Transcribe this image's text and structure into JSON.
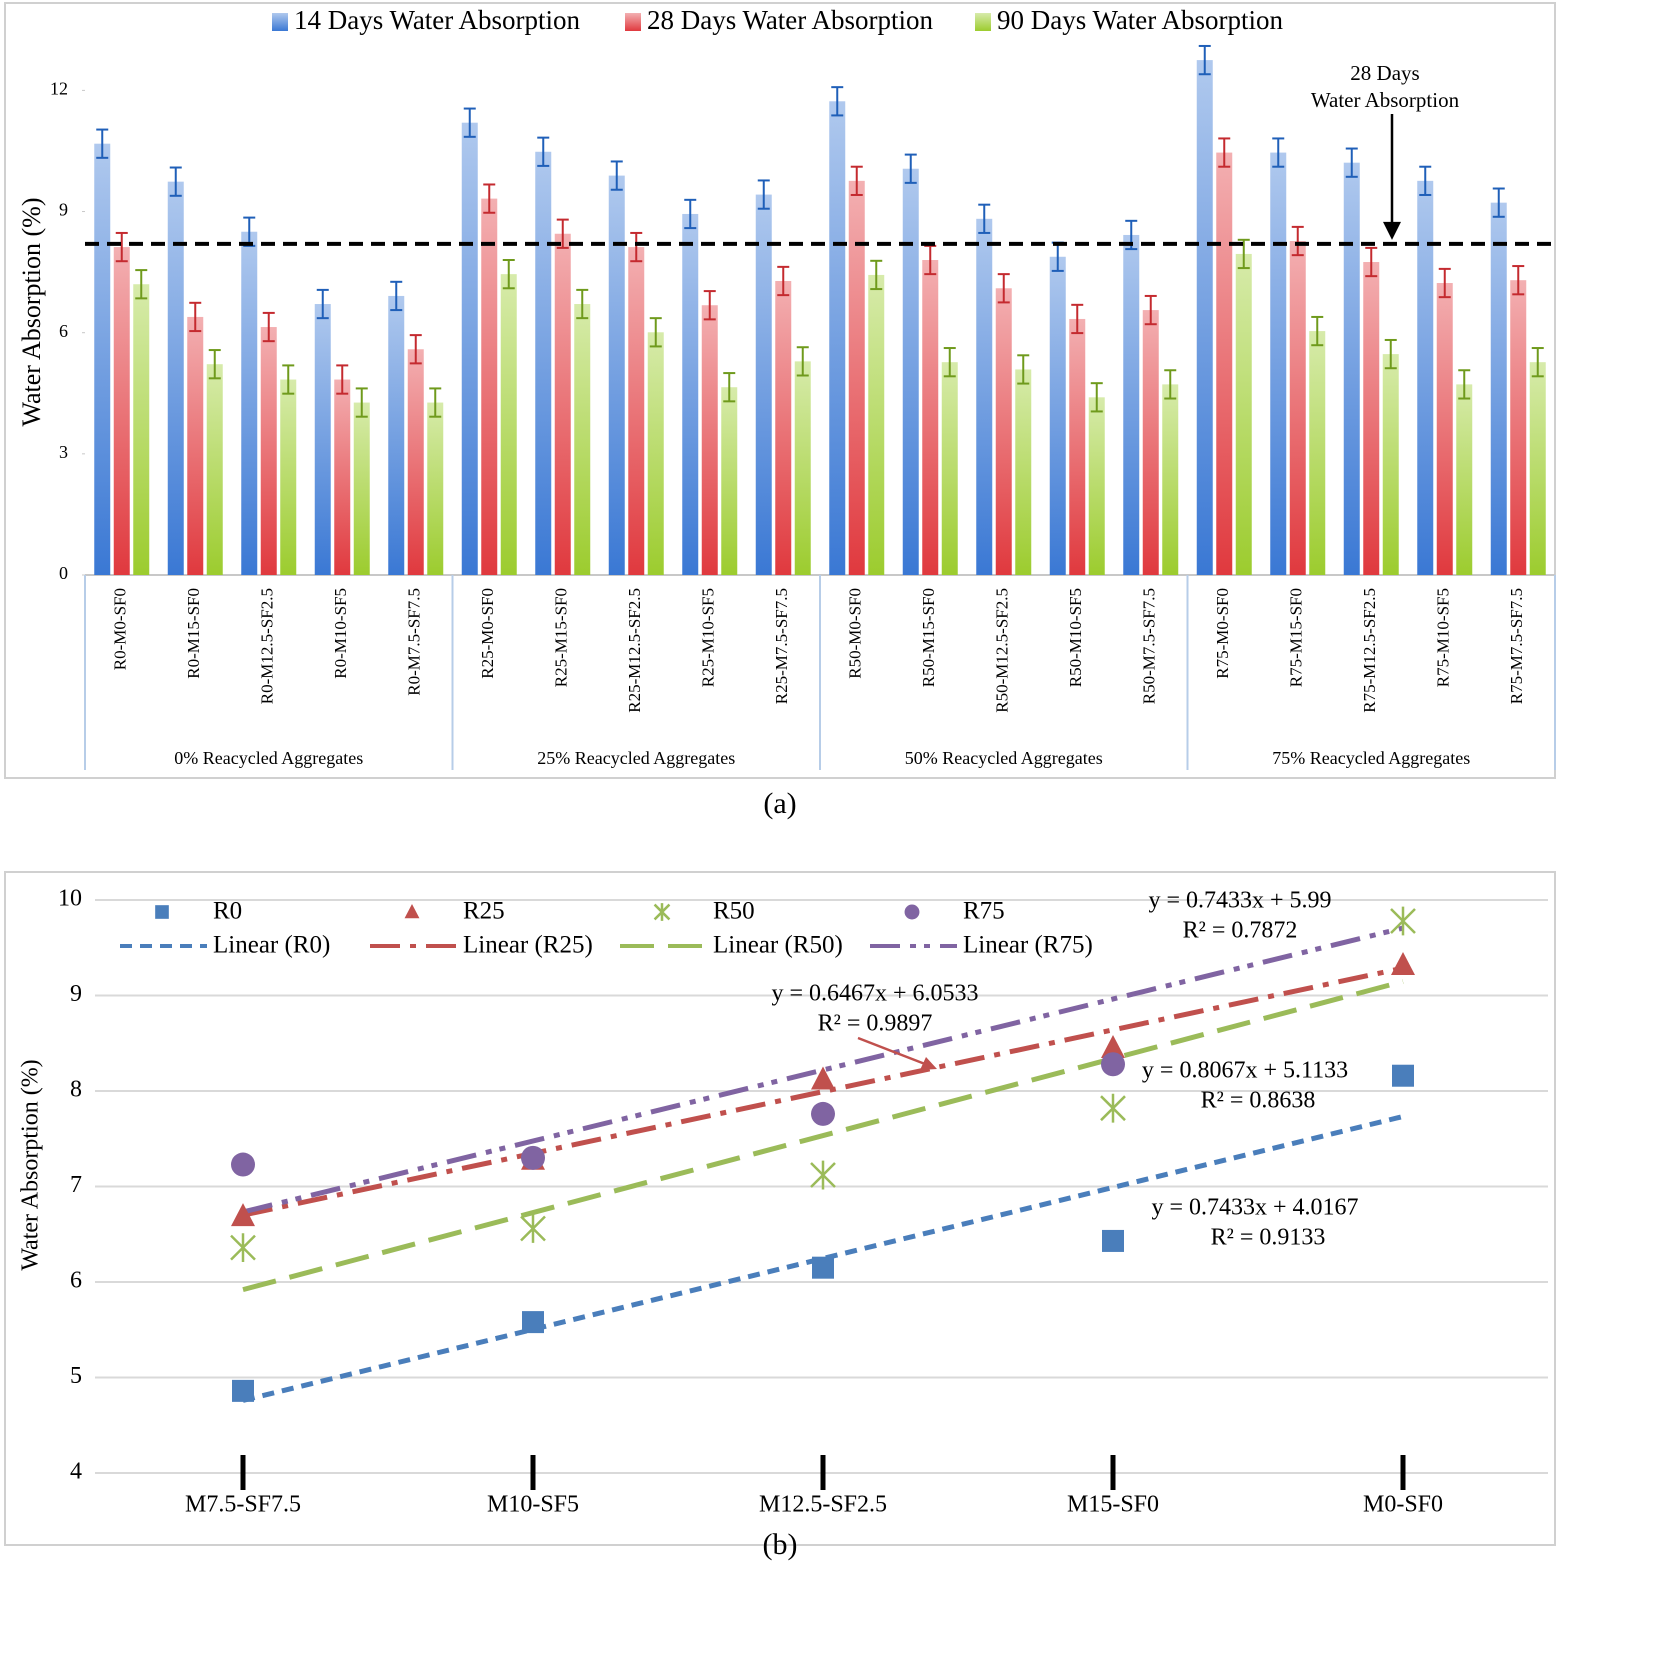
{
  "chart_data": [
    {
      "type": "bar",
      "caption": "(a)",
      "ylabel": "Water Absorption  (%)",
      "ylim": [
        0,
        13
      ],
      "yticks": [
        0,
        3,
        6,
        9,
        12
      ],
      "legend": "top",
      "categories": [
        "R0-M0-SF0",
        "R0-M15-SF0",
        "R0-M12.5-SF2.5",
        "R0-M10-SF5",
        "R0-M7.5-SF7.5",
        "R25-M0-SF0",
        "R25-M15-SF0",
        "R25-M12.5-SF2.5",
        "R25-M10-SF5",
        "R25-M7.5-SF7.5",
        "R50-M0-SF0",
        "R50-M15-SF0",
        "R50-M12.5-SF2.5",
        "R50-M10-SF5",
        "R50-M7.5-SF7.5",
        "R75-M0-SF0",
        "R75-M15-SF0",
        "R75-M12.5-SF2.5",
        "R75-M10-SF5",
        "R75-M7.5-SF7.5"
      ],
      "groups": [
        "0% Reacycled Aggregates",
        "25% Reacycled Aggregates",
        "50% Reacycled Aggregates",
        "75% Reacycled Aggregates"
      ],
      "series": [
        {
          "name": "14 Days Water Absorption",
          "color": "#3a78d4",
          "error": 0.35,
          "values": [
            10.68,
            9.74,
            8.5,
            6.71,
            6.91,
            11.2,
            10.48,
            9.89,
            8.94,
            9.42,
            11.73,
            10.06,
            8.82,
            7.88,
            8.42,
            12.75,
            10.46,
            10.21,
            9.76,
            9.22
          ]
        },
        {
          "name": "28 Days Water Absorption",
          "color": "#e0393e",
          "error": 0.35,
          "values": [
            8.12,
            6.39,
            6.14,
            4.84,
            5.59,
            9.32,
            8.45,
            8.12,
            6.68,
            7.28,
            9.76,
            7.8,
            7.1,
            6.34,
            6.56,
            10.46,
            8.27,
            7.75,
            7.23,
            7.3
          ]
        },
        {
          "name": "90 Days Water Absorption",
          "color": "#9ccc2e",
          "error": 0.35,
          "values": [
            7.2,
            5.22,
            4.84,
            4.27,
            4.27,
            7.45,
            6.71,
            6.01,
            4.65,
            5.29,
            7.43,
            5.27,
            5.09,
            4.4,
            4.72,
            7.95,
            6.04,
            5.47,
            4.72,
            5.27
          ]
        }
      ],
      "reference_line": {
        "value": 8.2,
        "label": [
          "28 Days",
          "Water Absorption"
        ]
      }
    },
    {
      "type": "scatter",
      "caption": "(b)",
      "ylabel": "Water Absorption (%)",
      "ylim": [
        4,
        10
      ],
      "yticks": [
        4,
        5,
        6,
        7,
        8,
        9,
        10
      ],
      "grid": true,
      "categories": [
        "M7.5-SF7.5",
        "M10-SF5",
        "M12.5-SF2.5",
        "M15-SF0",
        "M0-SF0"
      ],
      "series": [
        {
          "name": "R0",
          "color": "#4a7ebb",
          "marker": "square",
          "values": [
            4.86,
            5.58,
            6.15,
            6.43,
            8.16
          ]
        },
        {
          "name": "R25",
          "color": "#c0504d",
          "marker": "triangle",
          "values": [
            6.69,
            7.28,
            8.12,
            8.45,
            9.32
          ]
        },
        {
          "name": "R50",
          "color": "#9bbb59",
          "marker": "asterisk",
          "values": [
            6.36,
            6.56,
            7.12,
            7.82,
            9.78
          ]
        },
        {
          "name": "R75",
          "color": "#8064a2",
          "marker": "circle",
          "values": [
            7.23,
            7.3,
            7.76,
            8.28,
            null
          ]
        }
      ],
      "trendlines": [
        {
          "name": "Linear (R0)",
          "color": "#4a7ebb",
          "slope": 0.7433,
          "intercept": 4.0167,
          "equation": "y = 0.7433x + 4.0167",
          "r2": "R² = 0.9133"
        },
        {
          "name": "Linear (R25)",
          "color": "#c0504d",
          "slope": 0.6467,
          "intercept": 6.0533,
          "equation": "y = 0.6467x + 6.0533",
          "r2": "R² = 0.9897"
        },
        {
          "name": "Linear (R50)",
          "color": "#9bbb59",
          "slope": 0.8067,
          "intercept": 5.1133,
          "equation": "y = 0.8067x + 5.1133",
          "r2": "R² = 0.8638"
        },
        {
          "name": "Linear (R75)",
          "color": "#8064a2",
          "slope": 0.7433,
          "intercept": 5.99,
          "equation": "y = 0.7433x + 5.99",
          "r2": "R² = 0.7872"
        }
      ]
    }
  ]
}
